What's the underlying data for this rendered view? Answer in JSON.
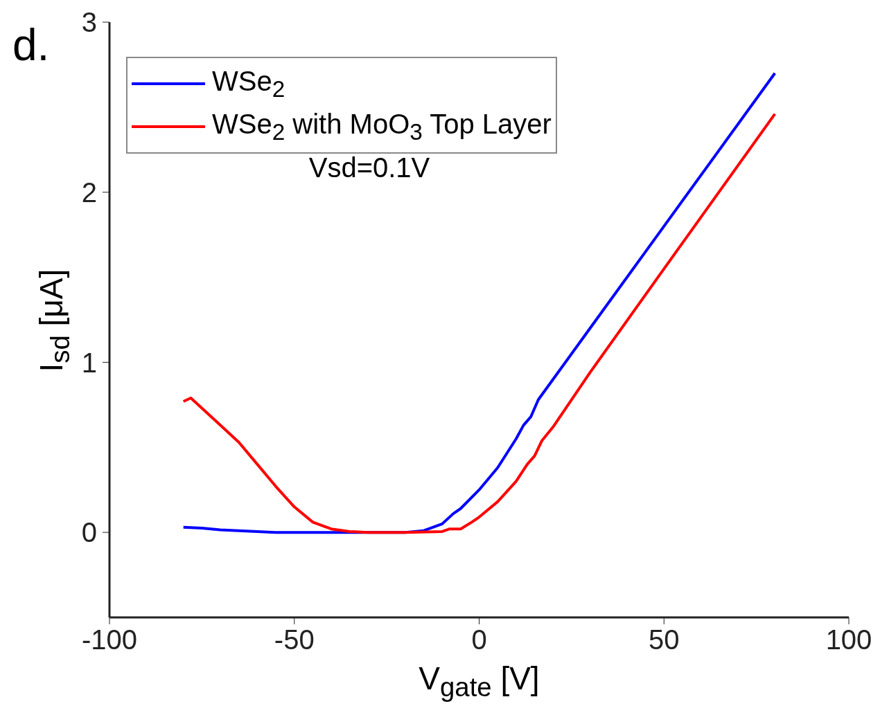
{
  "chart_data": {
    "type": "line",
    "title": "d.",
    "xlabel": "V$_{gate}$ [V]",
    "ylabel": "I$_{sd}$ [μA]",
    "annotations": [
      "Vsd=0.1V"
    ],
    "legend": "top left",
    "grid": false,
    "xlim": [
      -100,
      100
    ],
    "xticks": [
      -100,
      -50,
      0,
      50,
      100
    ],
    "ylim": [
      -0.5,
      3
    ],
    "yticks": [
      0,
      1,
      2,
      3
    ],
    "series": [
      {
        "name": "WSe$_{2}$",
        "color": "#0000ff",
        "x": [
          -80,
          -75,
          -70,
          -65,
          -60,
          -55,
          -50,
          -40,
          -30,
          -20,
          -15,
          -10,
          -7,
          -5,
          0,
          5,
          10,
          12,
          14,
          16,
          20,
          30,
          50,
          80
        ],
        "values": [
          0.03,
          0.025,
          0.015,
          0.01,
          0.005,
          0,
          0,
          0,
          0,
          0,
          0.01,
          0.05,
          0.11,
          0.14,
          0.25,
          0.38,
          0.55,
          0.63,
          0.68,
          0.78,
          0.9,
          1.2,
          1.8,
          2.7
        ]
      },
      {
        "name": "WSe$_{2}$ with MoO$_{3}$ Top Layer",
        "color": "#ff0000",
        "x": [
          -80,
          -78,
          -70,
          -65,
          -60,
          -55,
          -50,
          -45,
          -40,
          -35,
          -30,
          -20,
          -10,
          -8,
          -5,
          -2,
          0,
          5,
          10,
          13,
          15,
          17,
          20,
          30,
          50,
          80
        ],
        "values": [
          0.77,
          0.79,
          0.63,
          0.53,
          0.4,
          0.27,
          0.15,
          0.06,
          0.02,
          0.005,
          0,
          0,
          0.005,
          0.02,
          0.02,
          0.06,
          0.09,
          0.18,
          0.3,
          0.4,
          0.45,
          0.54,
          0.62,
          0.94,
          1.55,
          2.46
        ]
      }
    ]
  }
}
